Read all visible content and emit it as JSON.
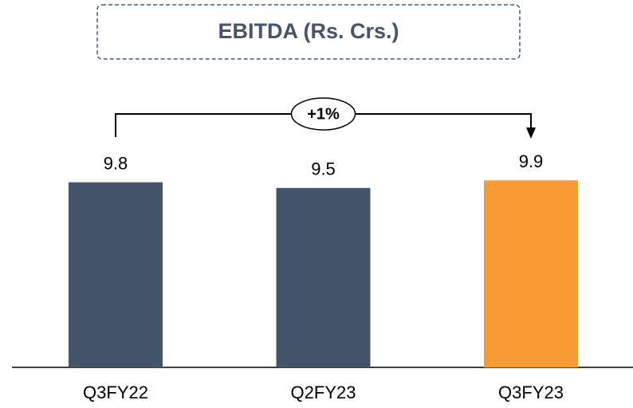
{
  "chart_data": {
    "type": "bar",
    "title": "EBITDA (Rs. Crs.)",
    "categories": [
      "Q3FY22",
      "Q2FY23",
      "Q3FY23"
    ],
    "values": [
      9.8,
      9.5,
      9.9
    ],
    "colors": [
      "#44546a",
      "#44546a",
      "#f99b34"
    ],
    "annotation": "+1%"
  }
}
